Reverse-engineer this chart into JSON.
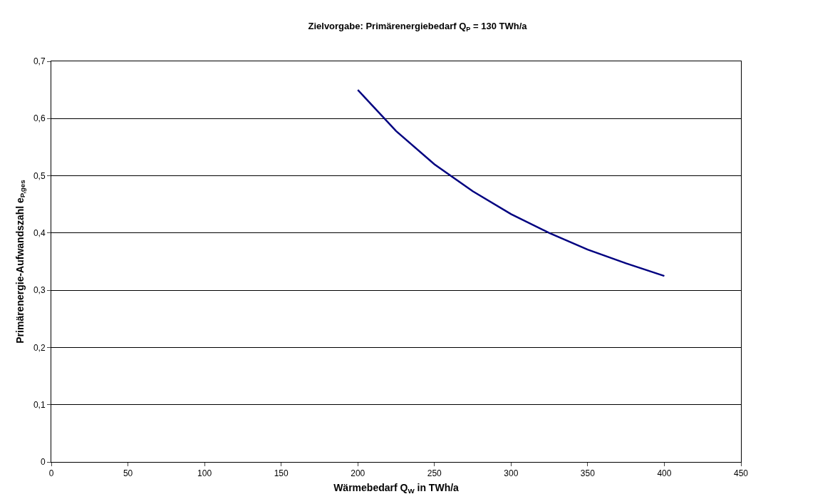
{
  "chart_data": {
    "type": "line",
    "title": "Zielvorgabe: Primärenergiebedarf Q$_{P}$ = 130 TWh/a",
    "xlabel": "Wärmebedarf Q$_{W}$ in TWh/a",
    "ylabel": "Primärenergie-Aufwandszahl e$_{P,ges}$",
    "x": [
      200,
      225,
      250,
      275,
      300,
      325,
      350,
      375,
      400
    ],
    "series": [
      {
        "color": "#000080",
        "values": [
          0.65,
          0.578,
          0.52,
          0.473,
          0.433,
          0.4,
          0.371,
          0.347,
          0.325
        ]
      }
    ],
    "xlim": [
      0,
      450
    ],
    "xticks": [
      0,
      50,
      100,
      150,
      200,
      250,
      300,
      350,
      400,
      450
    ],
    "ylim": [
      0,
      0.7
    ],
    "yticks": [
      {
        "value": 0,
        "label": "0"
      },
      {
        "value": 0.1,
        "label": "0,1"
      },
      {
        "value": 0.2,
        "label": "0,2"
      },
      {
        "value": 0.3,
        "label": "0,3"
      },
      {
        "value": 0.4,
        "label": "0,4"
      },
      {
        "value": 0.5,
        "label": "0,5"
      },
      {
        "value": 0.6,
        "label": "0,6"
      },
      {
        "value": 0.7,
        "label": "0,7"
      }
    ],
    "grid": "y",
    "marker": "none",
    "line_style": "solid"
  }
}
